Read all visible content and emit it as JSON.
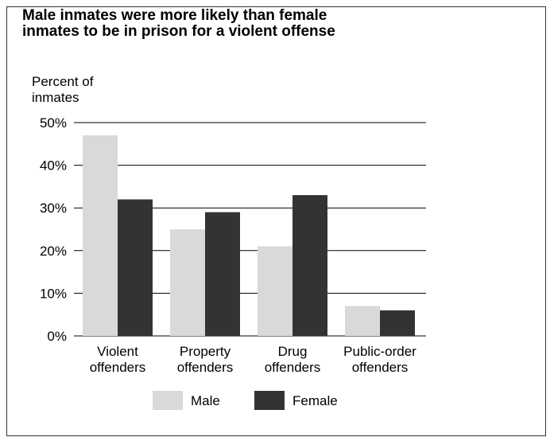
{
  "chart_data": {
    "type": "bar",
    "title_lines": [
      "Male inmates were more likely than female",
      "inmates to be in prison for a violent offense"
    ],
    "ylabel_lines": [
      "Percent of",
      "inmates"
    ],
    "categories": [
      [
        "Violent",
        "offenders"
      ],
      [
        "Property",
        "offenders"
      ],
      [
        "Drug",
        "offenders"
      ],
      [
        "Public-order",
        "offenders"
      ]
    ],
    "series": [
      {
        "name": "Male",
        "color": "#d9d9d9",
        "values": [
          47,
          25,
          21,
          7
        ]
      },
      {
        "name": "Female",
        "color": "#333333",
        "values": [
          32,
          29,
          33,
          6
        ]
      }
    ],
    "ylim": [
      0,
      50
    ],
    "yticks": [
      0,
      10,
      20,
      30,
      40,
      50
    ],
    "ytick_labels": [
      "0%",
      "10%",
      "20%",
      "30%",
      "40%",
      "50%"
    ],
    "grid": true,
    "legend_position": "bottom"
  }
}
